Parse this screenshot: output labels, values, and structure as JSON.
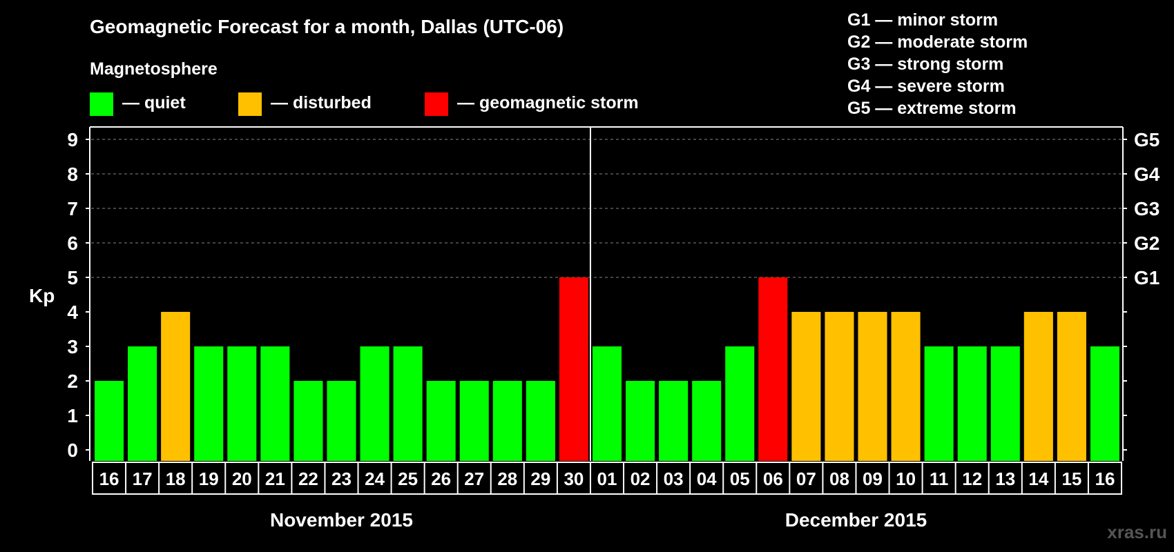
{
  "chart_data": {
    "type": "bar",
    "title": "Geomagnetic Forecast for a month, Dallas (UTC-06)",
    "ylabel": "Kp",
    "ylim": [
      0,
      9
    ],
    "yticks": [
      "0",
      "1",
      "2",
      "3",
      "4",
      "5",
      "6",
      "7",
      "8",
      "9"
    ],
    "storm_ticks": [
      {
        "kp": 5,
        "label": "G1"
      },
      {
        "kp": 6,
        "label": "G2"
      },
      {
        "kp": 7,
        "label": "G3"
      },
      {
        "kp": 8,
        "label": "G4"
      },
      {
        "kp": 9,
        "label": "G5"
      }
    ],
    "legend_title": "Magnetosphere",
    "legend": [
      {
        "label": "— quiet",
        "color": "#00ff00"
      },
      {
        "label": "— disturbed",
        "color": "#ffc000"
      },
      {
        "label": "— geomagnetic storm",
        "color": "#ff0000"
      }
    ],
    "storm_scale": [
      "G1 — minor storm",
      "G2 — moderate storm",
      "G3 — strong storm",
      "G4 — severe storm",
      "G5 — extreme storm"
    ],
    "categories": [
      "16",
      "17",
      "18",
      "19",
      "20",
      "21",
      "22",
      "23",
      "24",
      "25",
      "26",
      "27",
      "28",
      "29",
      "30",
      "01",
      "02",
      "03",
      "04",
      "05",
      "06",
      "07",
      "08",
      "09",
      "10",
      "11",
      "12",
      "13",
      "14",
      "15",
      "16"
    ],
    "values": [
      2,
      3,
      4,
      3,
      3,
      3,
      2,
      2,
      3,
      3,
      2,
      2,
      2,
      2,
      5,
      3,
      2,
      2,
      2,
      3,
      5,
      4,
      4,
      4,
      4,
      3,
      3,
      3,
      4,
      4,
      3
    ],
    "months": [
      {
        "label": "November 2015",
        "start": 0,
        "count": 15
      },
      {
        "label": "December 2015",
        "start": 15,
        "count": 16
      }
    ]
  },
  "watermark": "xras.ru",
  "colors": {
    "quiet": "#00ff00",
    "disturbed": "#ffc000",
    "storm": "#ff0000"
  }
}
